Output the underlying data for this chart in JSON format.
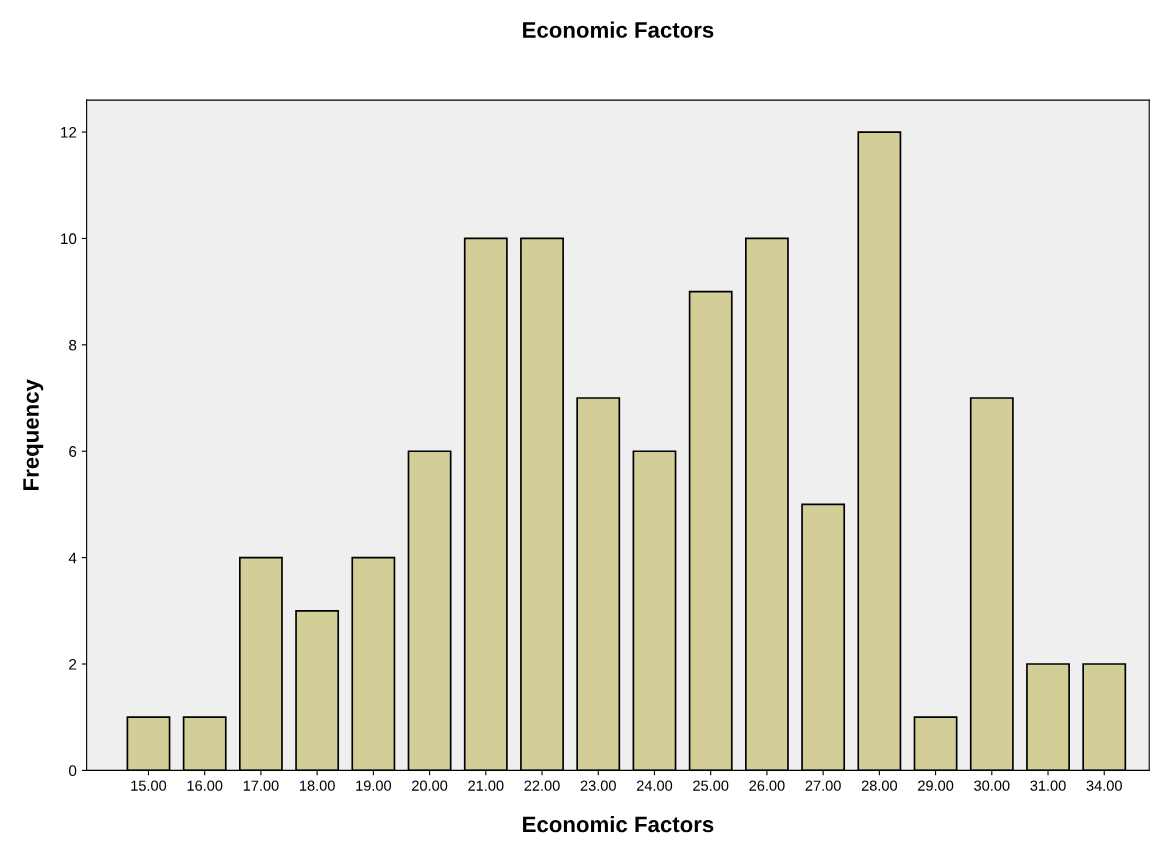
{
  "chart_data": {
    "type": "bar",
    "title": "Economic Factors",
    "xlabel": "Economic Factors",
    "ylabel": "Frequency",
    "categories": [
      "15.00",
      "16.00",
      "17.00",
      "18.00",
      "19.00",
      "20.00",
      "21.00",
      "22.00",
      "23.00",
      "24.00",
      "25.00",
      "26.00",
      "27.00",
      "28.00",
      "29.00",
      "30.00",
      "31.00",
      "34.00"
    ],
    "values": [
      1,
      1,
      4,
      3,
      4,
      6,
      10,
      10,
      7,
      6,
      9,
      10,
      5,
      12,
      1,
      7,
      2,
      2
    ],
    "color": "#d3ce97",
    "ylim": [
      0,
      12.6
    ],
    "yticks": [
      0,
      2,
      4,
      6,
      8,
      10,
      12
    ],
    "grid": false
  }
}
